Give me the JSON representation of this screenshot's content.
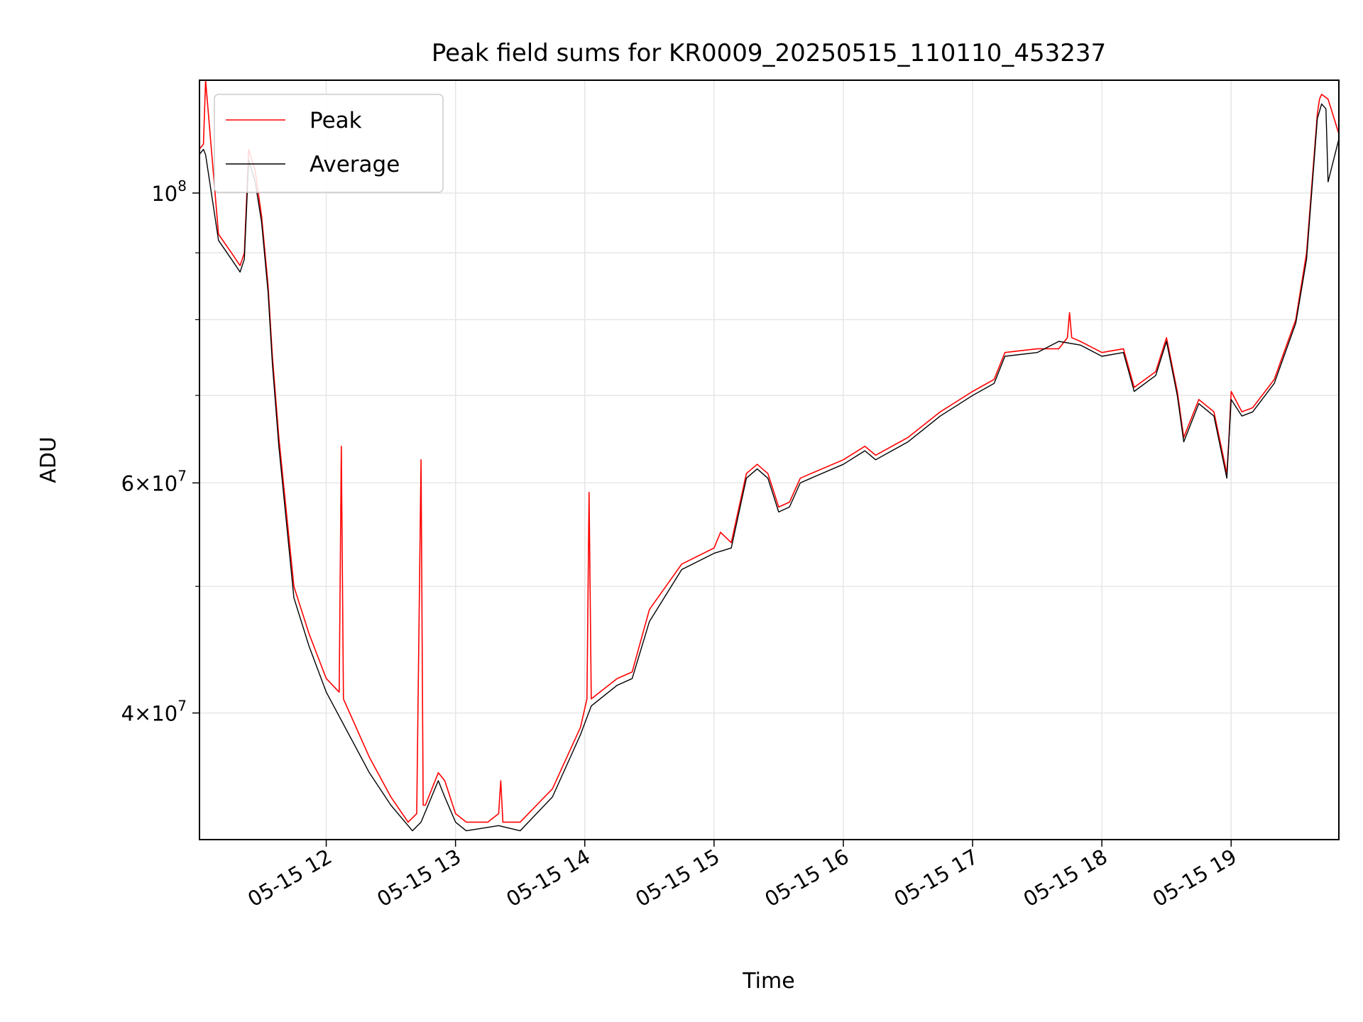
{
  "chart_data": {
    "type": "line",
    "title": "Peak field sums for KR0009_20250515_110110_453237",
    "xlabel": "Time",
    "ylabel": "ADU",
    "x_range": [
      "2025-05-15T11:01:10",
      "2025-05-15T19:50:00"
    ],
    "y_range": [
      32000000.0,
      122000000.0
    ],
    "y_scale": "log",
    "grid": true,
    "legend_position": "upper-left",
    "x_tick_labels": [
      "05-15 12",
      "05-15 13",
      "05-15 14",
      "05-15 15",
      "05-15 16",
      "05-15 17",
      "05-15 18",
      "05-15 19"
    ],
    "x_tick_values": [
      "2025-05-15T12:00",
      "2025-05-15T13:00",
      "2025-05-15T14:00",
      "2025-05-15T15:00",
      "2025-05-15T16:00",
      "2025-05-15T17:00",
      "2025-05-15T18:00",
      "2025-05-15T19:00"
    ],
    "y_major_ticks": [
      {
        "value": 40000000.0,
        "mantissa": "4",
        "base": "10",
        "exp": "7"
      },
      {
        "value": 60000000.0,
        "mantissa": "6",
        "base": "10",
        "exp": "7"
      },
      {
        "value": 100000000.0,
        "mantissa": "",
        "base": "10",
        "exp": "8"
      }
    ],
    "y_minor_ticks": [
      50000000.0,
      70000000.0,
      80000000.0,
      90000000.0
    ],
    "series": [
      {
        "name": "Peak",
        "color": "#ff0000",
        "x": [
          "2025-05-15T11:01",
          "2025-05-15T11:03",
          "2025-05-15T11:04",
          "2025-05-15T11:10",
          "2025-05-15T11:16",
          "2025-05-15T11:20",
          "2025-05-15T11:22",
          "2025-05-15T11:24",
          "2025-05-15T11:27",
          "2025-05-15T11:30",
          "2025-05-15T11:33",
          "2025-05-15T11:35",
          "2025-05-15T11:38",
          "2025-05-15T11:45",
          "2025-05-15T11:52",
          "2025-05-15T12:00",
          "2025-05-15T12:06",
          "2025-05-15T12:07",
          "2025-05-15T12:08",
          "2025-05-15T12:20",
          "2025-05-15T12:30",
          "2025-05-15T12:38",
          "2025-05-15T12:42",
          "2025-05-15T12:44",
          "2025-05-15T12:45",
          "2025-05-15T12:46",
          "2025-05-15T12:52",
          "2025-05-15T12:55",
          "2025-05-15T13:00",
          "2025-05-15T13:05",
          "2025-05-15T13:15",
          "2025-05-15T13:20",
          "2025-05-15T13:21",
          "2025-05-15T13:22",
          "2025-05-15T13:30",
          "2025-05-15T13:45",
          "2025-05-15T13:58",
          "2025-05-15T14:01",
          "2025-05-15T14:02",
          "2025-05-15T14:03",
          "2025-05-15T14:15",
          "2025-05-15T14:22",
          "2025-05-15T14:30",
          "2025-05-15T14:45",
          "2025-05-15T15:00",
          "2025-05-15T15:03",
          "2025-05-15T15:08",
          "2025-05-15T15:15",
          "2025-05-15T15:20",
          "2025-05-15T15:25",
          "2025-05-15T15:30",
          "2025-05-15T15:35",
          "2025-05-15T15:40",
          "2025-05-15T15:45",
          "2025-05-15T16:00",
          "2025-05-15T16:10",
          "2025-05-15T16:15",
          "2025-05-15T16:30",
          "2025-05-15T16:45",
          "2025-05-15T17:00",
          "2025-05-15T17:10",
          "2025-05-15T17:15",
          "2025-05-15T17:30",
          "2025-05-15T17:40",
          "2025-05-15T17:44",
          "2025-05-15T17:45",
          "2025-05-15T17:46",
          "2025-05-15T17:50",
          "2025-05-15T18:00",
          "2025-05-15T18:10",
          "2025-05-15T18:15",
          "2025-05-15T18:25",
          "2025-05-15T18:30",
          "2025-05-15T18:35",
          "2025-05-15T18:38",
          "2025-05-15T18:45",
          "2025-05-15T18:52",
          "2025-05-15T18:58",
          "2025-05-15T18:59",
          "2025-05-15T19:00",
          "2025-05-15T19:05",
          "2025-05-15T19:10",
          "2025-05-15T19:20",
          "2025-05-15T19:30",
          "2025-05-15T19:35",
          "2025-05-15T19:40",
          "2025-05-15T19:41",
          "2025-05-15T19:42",
          "2025-05-15T19:45",
          "2025-05-15T19:50"
        ],
        "y": [
          108000000.0,
          109000000.0,
          122000000.0,
          93000000.0,
          90000000.0,
          88000000.0,
          90000000.0,
          108000000.0,
          104000000.0,
          96000000.0,
          85000000.0,
          75000000.0,
          65000000.0,
          50000000.0,
          46000000.0,
          42500000.0,
          41500000.0,
          64000000.0,
          41000000.0,
          37000000.0,
          34500000.0,
          33000000.0,
          33500000.0,
          62500000.0,
          34000000.0,
          34000000.0,
          36000000.0,
          35500000.0,
          33500000.0,
          33000000.0,
          33000000.0,
          33500000.0,
          35500000.0,
          33000000.0,
          33000000.0,
          35000000.0,
          39000000.0,
          41000000.0,
          59000000.0,
          41000000.0,
          42500000.0,
          43000000.0,
          48000000.0,
          52000000.0,
          53500000.0,
          55000000.0,
          54000000.0,
          61000000.0,
          62000000.0,
          61000000.0,
          57500000.0,
          58000000.0,
          60500000.0,
          61000000.0,
          62500000.0,
          64000000.0,
          63000000.0,
          65000000.0,
          68000000.0,
          70500000.0,
          72000000.0,
          75500000.0,
          76000000.0,
          76000000.0,
          77500000.0,
          81000000.0,
          77500000.0,
          77000000.0,
          75500000.0,
          76000000.0,
          71000000.0,
          73000000.0,
          77500000.0,
          70500000.0,
          65000000.0,
          69500000.0,
          68000000.0,
          61000000.0,
          65000000.0,
          70500000.0,
          68000000.0,
          68500000.0,
          72000000.0,
          80000000.0,
          90000000.0,
          115000000.0,
          118000000.0,
          119000000.0,
          118000000.0,
          111000000.0
        ]
      },
      {
        "name": "Average",
        "color": "#000000",
        "x": [
          "2025-05-15T11:01",
          "2025-05-15T11:03",
          "2025-05-15T11:04",
          "2025-05-15T11:10",
          "2025-05-15T11:16",
          "2025-05-15T11:20",
          "2025-05-15T11:22",
          "2025-05-15T11:24",
          "2025-05-15T11:27",
          "2025-05-15T11:30",
          "2025-05-15T11:33",
          "2025-05-15T11:35",
          "2025-05-15T11:38",
          "2025-05-15T11:45",
          "2025-05-15T11:52",
          "2025-05-15T12:00",
          "2025-05-15T12:20",
          "2025-05-15T12:30",
          "2025-05-15T12:40",
          "2025-05-15T12:44",
          "2025-05-15T12:52",
          "2025-05-15T12:55",
          "2025-05-15T13:00",
          "2025-05-15T13:05",
          "2025-05-15T13:20",
          "2025-05-15T13:30",
          "2025-05-15T13:45",
          "2025-05-15T13:58",
          "2025-05-15T14:03",
          "2025-05-15T14:15",
          "2025-05-15T14:22",
          "2025-05-15T14:30",
          "2025-05-15T14:45",
          "2025-05-15T15:00",
          "2025-05-15T15:08",
          "2025-05-15T15:15",
          "2025-05-15T15:20",
          "2025-05-15T15:25",
          "2025-05-15T15:30",
          "2025-05-15T15:35",
          "2025-05-15T15:40",
          "2025-05-15T15:45",
          "2025-05-15T16:00",
          "2025-05-15T16:10",
          "2025-05-15T16:15",
          "2025-05-15T16:30",
          "2025-05-15T16:45",
          "2025-05-15T17:00",
          "2025-05-15T17:10",
          "2025-05-15T17:15",
          "2025-05-15T17:30",
          "2025-05-15T17:40",
          "2025-05-15T17:50",
          "2025-05-15T18:00",
          "2025-05-15T18:10",
          "2025-05-15T18:15",
          "2025-05-15T18:25",
          "2025-05-15T18:30",
          "2025-05-15T18:35",
          "2025-05-15T18:38",
          "2025-05-15T18:45",
          "2025-05-15T18:52",
          "2025-05-15T18:58",
          "2025-05-15T19:00",
          "2025-05-15T19:05",
          "2025-05-15T19:10",
          "2025-05-15T19:20",
          "2025-05-15T19:30",
          "2025-05-15T19:35",
          "2025-05-15T19:40",
          "2025-05-15T19:42",
          "2025-05-15T19:44",
          "2025-05-15T19:45",
          "2025-05-15T19:50"
        ],
        "y": [
          107000000.0,
          108000000.0,
          107000000.0,
          92000000.0,
          89000000.0,
          87000000.0,
          89000000.0,
          106000000.0,
          102000000.0,
          95000000.0,
          84000000.0,
          74000000.0,
          64000000.0,
          49000000.0,
          45000000.0,
          41500000.0,
          36000000.0,
          34000000.0,
          32500000.0,
          33000000.0,
          35500000.0,
          34500000.0,
          33000000.0,
          32500000.0,
          32800000.0,
          32500000.0,
          34500000.0,
          38500000.0,
          40500000.0,
          42000000.0,
          42500000.0,
          47000000.0,
          51500000.0,
          53000000.0,
          53500000.0,
          60500000.0,
          61500000.0,
          60500000.0,
          57000000.0,
          57500000.0,
          60000000.0,
          60500000.0,
          62000000.0,
          63500000.0,
          62500000.0,
          64500000.0,
          67500000.0,
          70000000.0,
          71500000.0,
          75000000.0,
          75500000.0,
          77000000.0,
          76500000.0,
          75000000.0,
          75500000.0,
          70500000.0,
          72500000.0,
          77000000.0,
          70000000.0,
          64500000.0,
          69000000.0,
          67500000.0,
          60500000.0,
          69500000.0,
          67500000.0,
          68000000.0,
          71500000.0,
          79500000.0,
          89000000.0,
          114000000.0,
          117000000.0,
          116000000.0,
          102000000.0,
          110000000.0
        ]
      }
    ]
  }
}
